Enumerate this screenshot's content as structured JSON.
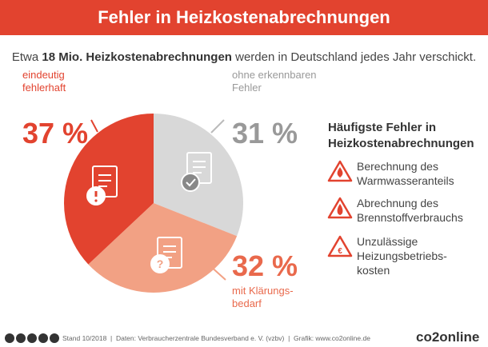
{
  "chart_data": {
    "type": "pie",
    "title": "Fehler in Heizkostenabrechnungen",
    "subtitle": [
      "Etwa",
      "18 Mio. Heizkostenabrechnungen",
      "werden in Deutschland jedes Jahr verschickt."
    ],
    "categories": [
      "ohne erkennbaren Fehler",
      "mit Klärungs­bedarf",
      "eindeutig fehlerhaft"
    ],
    "values": [
      31,
      32,
      37
    ],
    "value_labels": [
      "31 %",
      "32 %",
      "37 %"
    ],
    "colors": [
      "#d8d8d8",
      "#f2a184",
      "#e2432f"
    ]
  },
  "side_panel": {
    "title": "Häufigste Fehler in Heizkostenabrechnungen",
    "items": [
      "Berechnung des Warmwasseranteils",
      "Abrechnung des Brennstoffverbrauchs",
      "Unzulässige Heizungsbetriebs­kosten"
    ]
  },
  "footer": {
    "source": "Stand 10/2018  |  Daten: Verbraucherzentrale Bundesverband e. V. (vzbv)  |  Grafik: www.co2online.de",
    "logo": "co2online"
  }
}
